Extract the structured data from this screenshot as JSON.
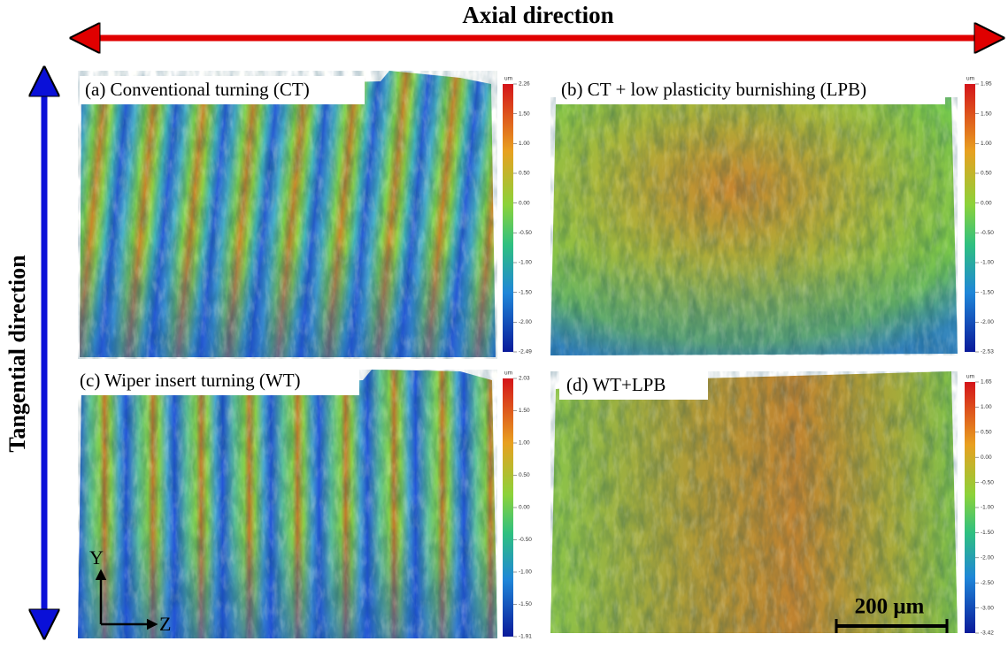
{
  "header": {
    "axial_direction": "Axial direction",
    "tangential_direction": "Tangential direction"
  },
  "panels": [
    {
      "label": "(a) Conventional turning (CT)",
      "colorbar": {
        "unit": "um",
        "ticks": [
          "2.26",
          "1.50",
          "1.00",
          "0.50",
          "0.00",
          "-0.50",
          "-1.00",
          "-1.50",
          "-2.00",
          "-2.49"
        ]
      }
    },
    {
      "label": "(b) CT + low plasticity burnishing (LPB)",
      "colorbar": {
        "unit": "um",
        "ticks": [
          "1.95",
          "1.50",
          "1.00",
          "0.50",
          "0.00",
          "-0.50",
          "-1.00",
          "-1.50",
          "-2.00",
          "-2.53"
        ]
      }
    },
    {
      "label": "(c) Wiper insert turning (WT)",
      "colorbar": {
        "unit": "um",
        "ticks": [
          "2.03",
          "1.50",
          "1.00",
          "0.50",
          "0.00",
          "-0.50",
          "-1.00",
          "-1.50",
          "-1.91"
        ]
      }
    },
    {
      "label": "(d) WT+LPB",
      "colorbar": {
        "unit": "um",
        "ticks": [
          "1.65",
          "1.00",
          "0.50",
          "0.00",
          "-0.50",
          "-1.00",
          "-1.50",
          "-2.00",
          "-2.50",
          "-3.00",
          "-3.42"
        ]
      }
    }
  ],
  "coordinate_axes": {
    "y": "Y",
    "z": "Z"
  },
  "scale_bar": "200 μm"
}
